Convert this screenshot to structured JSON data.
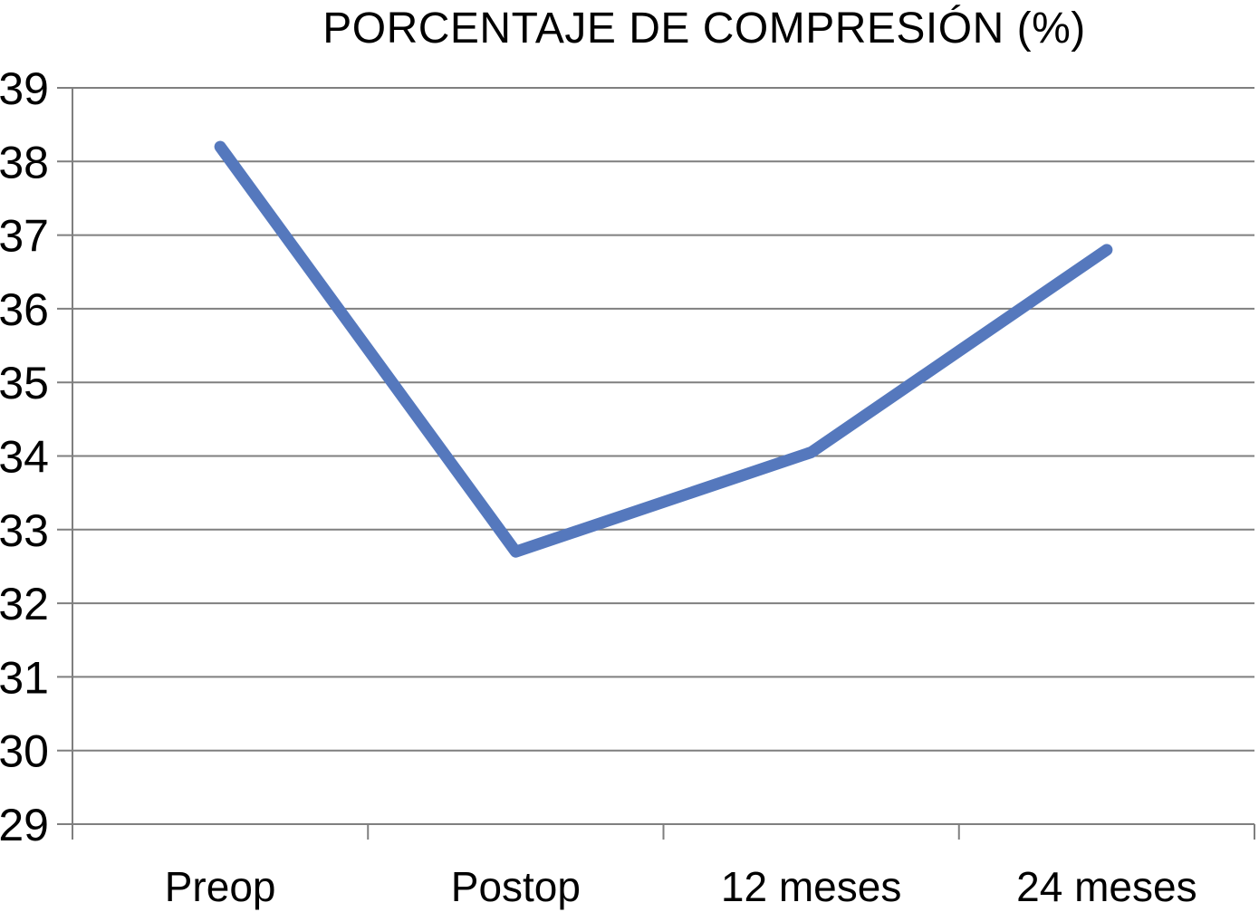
{
  "chart_data": {
    "type": "line",
    "title": "PORCENTAJE DE COMPRESIÓN (%)",
    "categories": [
      "Preop",
      "Postop",
      "12 meses",
      "24 meses"
    ],
    "values": [
      38.2,
      32.7,
      34.05,
      36.8
    ],
    "xlabel": "",
    "ylabel": "",
    "ylim": [
      29,
      39
    ],
    "y_tick_step": 1,
    "y_ticks": [
      29,
      30,
      31,
      32,
      33,
      34,
      35,
      36,
      37,
      38,
      39
    ],
    "grid": "horizontal",
    "legend": "none",
    "colors": {
      "line": "#5578BD",
      "grid": "#7f7f7f",
      "axis": "#7f7f7f",
      "text": "#000000",
      "background": "#ffffff"
    }
  }
}
